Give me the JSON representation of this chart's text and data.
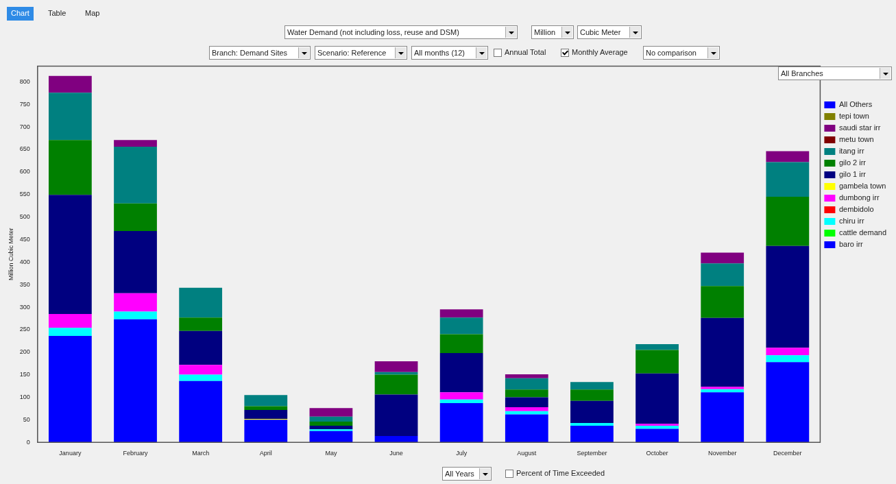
{
  "chart_data": {
    "type": "bar",
    "title": "Water Demand (not including loss, reuse and DSM)",
    "ylabel": "Million Cubic Meter",
    "categories": [
      "January",
      "February",
      "March",
      "April",
      "May",
      "June",
      "July",
      "August",
      "September",
      "October",
      "November",
      "December"
    ],
    "stacked": true,
    "ylim": [
      0,
      835
    ],
    "yticks": [
      0,
      50,
      100,
      150,
      200,
      250,
      300,
      350,
      400,
      450,
      500,
      550,
      600,
      650,
      700,
      750,
      800
    ],
    "grid": false,
    "legend": "right",
    "series": [
      {
        "name": "baro irr",
        "color": "#0000ff",
        "values": [
          236,
          273,
          136,
          50,
          25,
          14,
          87,
          62,
          37,
          30,
          111,
          178
        ]
      },
      {
        "name": "cattle demand",
        "color": "#00ff00",
        "values": [
          0,
          0,
          0,
          0,
          0,
          0,
          0,
          0,
          0,
          0,
          0,
          0
        ]
      },
      {
        "name": "chiru irr",
        "color": "#00ffff",
        "values": [
          18,
          17,
          14,
          0,
          4,
          0,
          8,
          7,
          6,
          7,
          7,
          15
        ]
      },
      {
        "name": "dembidolo",
        "color": "#ff0000",
        "values": [
          0,
          0,
          0,
          0,
          0,
          0,
          0,
          0,
          0,
          0,
          0,
          0
        ]
      },
      {
        "name": "dumbong irr",
        "color": "#ff00ff",
        "values": [
          31,
          41,
          22,
          0,
          0,
          0,
          16,
          9,
          0,
          4,
          5,
          17
        ]
      },
      {
        "name": "gambela town",
        "color": "#ffff00",
        "values": [
          0,
          0,
          0,
          2,
          0,
          0,
          0,
          0,
          0,
          0,
          0,
          0
        ]
      },
      {
        "name": "gilo 1 irr",
        "color": "#000080",
        "values": [
          264,
          138,
          75,
          20,
          8,
          92,
          87,
          22,
          49,
          112,
          153,
          226
        ]
      },
      {
        "name": "gilo 2 irr",
        "color": "#008000",
        "values": [
          122,
          61,
          30,
          8,
          9,
          44,
          42,
          17,
          25,
          52,
          71,
          109
        ]
      },
      {
        "name": "itang irr",
        "color": "#008080",
        "values": [
          105,
          126,
          66,
          25,
          11,
          6,
          37,
          25,
          17,
          13,
          50,
          77
        ]
      },
      {
        "name": "metu town",
        "color": "#800000",
        "values": [
          0,
          0,
          0,
          0,
          0,
          0,
          0,
          0,
          0,
          0,
          0,
          0
        ]
      },
      {
        "name": "saudi star irr",
        "color": "#800080",
        "values": [
          37,
          15,
          0,
          0,
          19,
          24,
          18,
          9,
          0,
          0,
          24,
          24
        ]
      },
      {
        "name": "tepi town",
        "color": "#808000",
        "values": [
          0,
          0,
          0,
          0,
          0,
          0,
          0,
          0,
          0,
          0,
          0,
          0
        ]
      },
      {
        "name": "All Others",
        "color": "#0000ff",
        "values": [
          0,
          0,
          0,
          0,
          0,
          0,
          0,
          0,
          0,
          0,
          0,
          0
        ]
      }
    ],
    "annotations": [
      "Chart",
      "Table",
      "Map",
      "Million",
      "Cubic Meter",
      "Branch: Demand Sites",
      "Scenario: Reference",
      "All months (12)",
      "Annual Total",
      "Monthly Average",
      "No comparison",
      "All Branches",
      "All Years",
      "Percent of Time Exceeded"
    ]
  }
}
